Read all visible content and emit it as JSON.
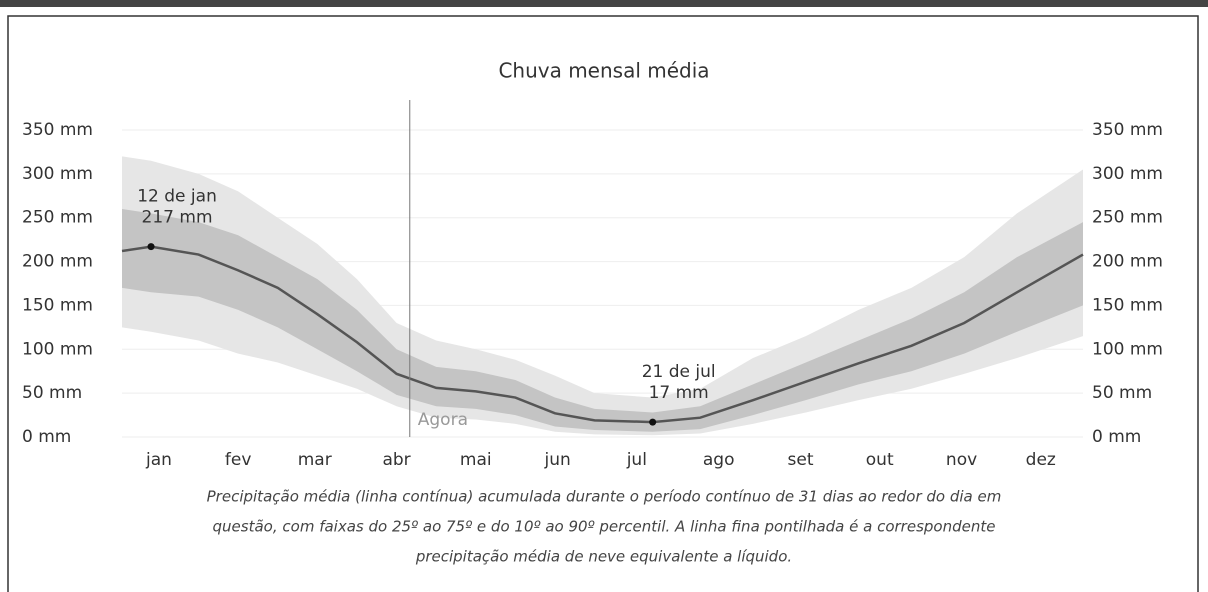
{
  "chart_data": {
    "type": "line",
    "title": "Chuva mensal média",
    "x": [
      1,
      12,
      30,
      45,
      60,
      75,
      90,
      105,
      120,
      135,
      150,
      165,
      180,
      202,
      220,
      240,
      260,
      280,
      300,
      320,
      340,
      365
    ],
    "series": [
      {
        "color": "#555555",
        "values": [
          212,
          217,
          208,
          190,
          170,
          140,
          108,
          72,
          56,
          52,
          45,
          27,
          19,
          17,
          22,
          42,
          63,
          84,
          104,
          130,
          165,
          208
        ]
      }
    ],
    "bands": [
      {
        "color": "#e6e6e6",
        "lower": [
          125,
          120,
          110,
          95,
          85,
          70,
          55,
          35,
          22,
          20,
          15,
          6,
          3,
          2,
          4,
          15,
          28,
          42,
          55,
          72,
          90,
          115
        ],
        "upper": [
          320,
          315,
          300,
          280,
          250,
          220,
          180,
          130,
          110,
          100,
          88,
          70,
          50,
          45,
          55,
          90,
          115,
          145,
          170,
          205,
          255,
          305
        ]
      },
      {
        "color": "#c4c4c4",
        "lower": [
          170,
          165,
          160,
          145,
          125,
          100,
          75,
          48,
          35,
          32,
          25,
          12,
          8,
          6,
          9,
          25,
          42,
          60,
          75,
          95,
          120,
          150
        ],
        "upper": [
          260,
          255,
          245,
          230,
          205,
          180,
          145,
          100,
          80,
          75,
          65,
          45,
          32,
          28,
          35,
          60,
          85,
          110,
          135,
          165,
          205,
          245
        ]
      }
    ],
    "xlim": [
      1,
      365
    ],
    "xticks": [
      {
        "value": 15,
        "label": "jan"
      },
      {
        "value": 45,
        "label": "fev"
      },
      {
        "value": 74,
        "label": "mar"
      },
      {
        "value": 105,
        "label": "abr"
      },
      {
        "value": 135,
        "label": "mai"
      },
      {
        "value": 166,
        "label": "jun"
      },
      {
        "value": 196,
        "label": "jul"
      },
      {
        "value": 227,
        "label": "ago"
      },
      {
        "value": 258,
        "label": "set"
      },
      {
        "value": 288,
        "label": "out"
      },
      {
        "value": 319,
        "label": "nov"
      },
      {
        "value": 349,
        "label": "dez"
      }
    ],
    "ylim": [
      0,
      350
    ],
    "yticks": [
      {
        "value": 0,
        "label": "0 mm"
      },
      {
        "value": 50,
        "label": "50 mm"
      },
      {
        "value": 100,
        "label": "100 mm"
      },
      {
        "value": 150,
        "label": "150 mm"
      },
      {
        "value": 200,
        "label": "200 mm"
      },
      {
        "value": 250,
        "label": "250 mm"
      },
      {
        "value": 300,
        "label": "300 mm"
      },
      {
        "value": 350,
        "label": "350 mm"
      }
    ],
    "y2lim": [
      0,
      350
    ],
    "y2ticks": [
      {
        "value": 0,
        "label": "0 mm"
      },
      {
        "value": 50,
        "label": "50 mm"
      },
      {
        "value": 100,
        "label": "100 mm"
      },
      {
        "value": 150,
        "label": "150 mm"
      },
      {
        "value": 200,
        "label": "200 mm"
      },
      {
        "value": 250,
        "label": "250 mm"
      },
      {
        "value": 300,
        "label": "300 mm"
      },
      {
        "value": 350,
        "label": "350 mm"
      }
    ],
    "grid": true,
    "now": {
      "x": 110,
      "label": "Agora"
    },
    "annotations": [
      {
        "x": 12,
        "value": 217,
        "date_label": "12 de jan",
        "value_label": "217 mm"
      },
      {
        "x": 202,
        "value": 17,
        "date_label": "21 de jul",
        "value_label": "17 mm"
      }
    ],
    "caption": [
      "Precipitação média (linha contínua) acumulada durante o período contínuo de 31 dias ao redor do dia em",
      "questão, com faixas do 25º ao 75º e do 10º ao 90º percentil. A linha fina pontilhada é a correspondente",
      "precipitação média de neve equivalente a líquido."
    ]
  }
}
